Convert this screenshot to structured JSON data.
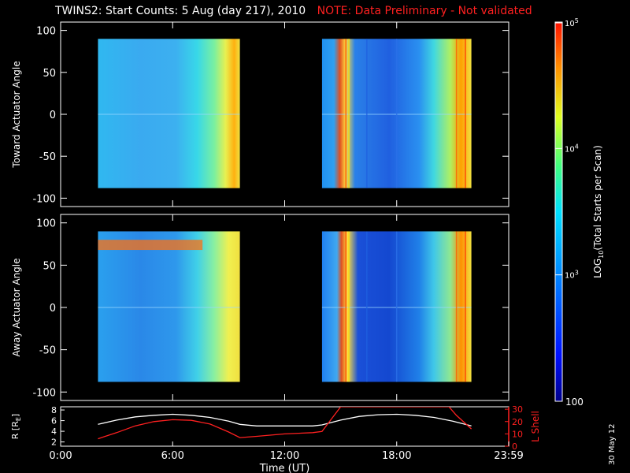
{
  "title": {
    "main": "TWINS2: Start Counts:  5 Aug (day 217), 2010",
    "note": "NOTE: Data Preliminary - Not validated",
    "note_color": "#ff2020"
  },
  "date_stamp": "30 May 12",
  "chart_data": [
    {
      "type": "heatmap",
      "ylabel": "Toward Actuator Angle",
      "yticks": [
        100,
        50,
        0,
        -50,
        -100
      ],
      "ylim": [
        -110,
        110
      ],
      "data_y_range": [
        -88,
        90
      ],
      "data_time_ranges": [
        [
          2.0,
          9.6
        ],
        [
          14.0,
          22.0
        ]
      ]
    },
    {
      "type": "heatmap",
      "ylabel": "Away Actuator Angle",
      "yticks": [
        100,
        50,
        0,
        -50,
        -100
      ],
      "ylim": [
        -110,
        110
      ],
      "data_y_range": [
        -88,
        90
      ],
      "data_time_ranges": [
        [
          2.0,
          9.6
        ],
        [
          14.0,
          22.0
        ]
      ]
    },
    {
      "type": "line",
      "ylabel_left": "R [R",
      "ylabel_left_sub": "E",
      "ylabel_left_end": "]",
      "ylabel_right": "L Shell",
      "yticks_left": [
        8,
        6,
        4,
        2
      ],
      "yticks_right": [
        30,
        20,
        10,
        0
      ],
      "ylim_left": [
        1.2,
        8.6
      ],
      "ylim_right": [
        0,
        32
      ],
      "series": [
        {
          "color": "#ffffff",
          "x": [
            2.0,
            3.0,
            4.0,
            5.0,
            6.0,
            7.0,
            8.0,
            9.0,
            9.6,
            10.5,
            12.0,
            13.5,
            14.0,
            15.0,
            16.0,
            17.0,
            18.0,
            19.0,
            20.0,
            21.0,
            22.0
          ],
          "y": [
            5.3,
            6.1,
            6.7,
            7.0,
            7.2,
            7.0,
            6.6,
            5.9,
            5.3,
            5.0,
            5.0,
            5.0,
            5.2,
            6.1,
            6.8,
            7.1,
            7.2,
            7.0,
            6.6,
            5.9,
            5.0
          ]
        },
        {
          "color": "#ff2020",
          "x": [
            2.0,
            3.0,
            4.0,
            5.0,
            6.0,
            7.0,
            8.0,
            9.0,
            9.6,
            10.5,
            12.0,
            13.5,
            14.0,
            14.7,
            15.0,
            20.8,
            21.2,
            22.0
          ],
          "y": [
            6.0,
            11.0,
            16.5,
            20.0,
            21.5,
            21.0,
            18.0,
            11.5,
            7.0,
            8.0,
            10.0,
            11.0,
            12.0,
            26.0,
            32.0,
            32.0,
            25.0,
            14.0
          ]
        }
      ]
    }
  ],
  "time_axis": {
    "label": "Time (UT)",
    "ticks": [
      "0:00",
      "6:00",
      "12:00",
      "18:00",
      "23:59"
    ],
    "tick_hours": [
      0,
      6,
      12,
      18,
      24
    ]
  },
  "colorbar": {
    "label_main": "LOG",
    "label_sub": "10",
    "label_rest": "(Total Starts per Scan)",
    "tick_top_base": "10",
    "tick_top_exp": "5",
    "tick_mid_base": "10",
    "tick_mid_exp": "4",
    "tick_low_base": "10",
    "tick_low_exp": "3",
    "tick_bottom": "100"
  }
}
